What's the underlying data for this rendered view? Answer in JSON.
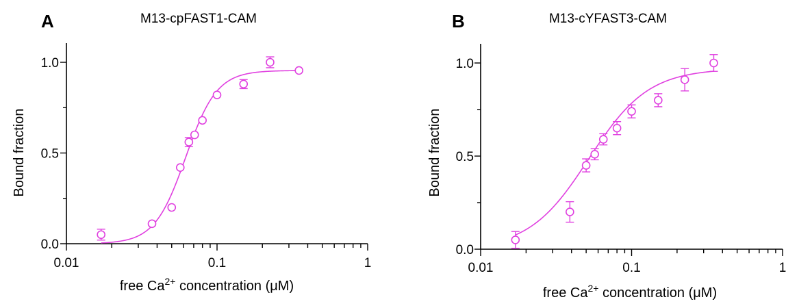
{
  "colors": {
    "series": "#e040e0",
    "axis": "#000000"
  },
  "chart_data": [
    {
      "type": "scatter",
      "panel_label": "A",
      "title": "M13-cpFAST1-CAM",
      "xlabel": "free Ca",
      "xlabel_sup": "2+",
      "xlabel_tail": " concentration (μM)",
      "ylabel": "Bound fraction",
      "xscale": "log",
      "xlim": [
        0.01,
        1
      ],
      "ylim": [
        0,
        1
      ],
      "x_ticks": [
        "0.01",
        "0.1",
        "1"
      ],
      "y_ticks": [
        "0.0",
        "0.5",
        "1.0"
      ],
      "fit": {
        "type": "hill",
        "top": 0.955,
        "ec50": 0.062,
        "n": 4.2
      },
      "points": [
        {
          "x": 0.017,
          "y": 0.05,
          "err": 0.03
        },
        {
          "x": 0.037,
          "y": 0.11,
          "err": 0.0
        },
        {
          "x": 0.05,
          "y": 0.2,
          "err": 0.0
        },
        {
          "x": 0.057,
          "y": 0.42,
          "err": 0.0
        },
        {
          "x": 0.065,
          "y": 0.56,
          "err": 0.025
        },
        {
          "x": 0.071,
          "y": 0.6,
          "err": 0.0
        },
        {
          "x": 0.08,
          "y": 0.68,
          "err": 0.0
        },
        {
          "x": 0.1,
          "y": 0.82,
          "err": 0.0
        },
        {
          "x": 0.15,
          "y": 0.88,
          "err": 0.025
        },
        {
          "x": 0.225,
          "y": 1.0,
          "err": 0.03
        },
        {
          "x": 0.35,
          "y": 0.955,
          "err": 0.0
        }
      ]
    },
    {
      "type": "scatter",
      "panel_label": "B",
      "title": "M13-cYFAST3-CAM",
      "xlabel": "free Ca",
      "xlabel_sup": "2+",
      "xlabel_tail": " concentration (μM)",
      "ylabel": "Bound fraction",
      "xscale": "log",
      "xlim": [
        0.01,
        1
      ],
      "ylim": [
        0,
        1
      ],
      "x_ticks": [
        "0.01",
        "0.1",
        "1"
      ],
      "y_ticks": [
        "0.0",
        "0.5",
        "1.0"
      ],
      "fit": {
        "type": "hill",
        "top": 0.97,
        "ec50": 0.052,
        "n": 2.2
      },
      "points": [
        {
          "x": 0.017,
          "y": 0.05,
          "err": 0.045
        },
        {
          "x": 0.039,
          "y": 0.2,
          "err": 0.055
        },
        {
          "x": 0.05,
          "y": 0.45,
          "err": 0.035
        },
        {
          "x": 0.057,
          "y": 0.51,
          "err": 0.03
        },
        {
          "x": 0.065,
          "y": 0.59,
          "err": 0.03
        },
        {
          "x": 0.08,
          "y": 0.65,
          "err": 0.035
        },
        {
          "x": 0.1,
          "y": 0.74,
          "err": 0.035
        },
        {
          "x": 0.15,
          "y": 0.8,
          "err": 0.035
        },
        {
          "x": 0.225,
          "y": 0.91,
          "err": 0.06
        },
        {
          "x": 0.35,
          "y": 1.0,
          "err": 0.045
        }
      ]
    }
  ]
}
